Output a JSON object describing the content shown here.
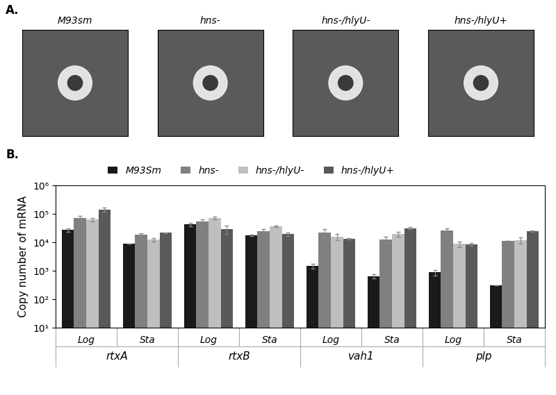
{
  "panel_a": {
    "label": "A.",
    "titles": [
      "M93sm",
      "hns-",
      "hns-/hlyU-",
      "hns-/hlyU+"
    ]
  },
  "chart_data": {
    "type": "bar",
    "panel_label": "B.",
    "y_label": "Copy number of mRNA",
    "categories": [
      "Log",
      "Sta",
      "Log",
      "Sta",
      "Log",
      "Sta",
      "Log",
      "Sta"
    ],
    "groups": [
      "rtxA",
      "rtxB",
      "vah1",
      "plp"
    ],
    "log": "y",
    "grid": false,
    "legend": "upper center",
    "ylim": [
      10,
      1000000
    ],
    "yticks": [
      {
        "value": 10,
        "label": "10¹"
      },
      {
        "value": 100,
        "label": "10²"
      },
      {
        "value": 1000,
        "label": "10³"
      },
      {
        "value": 10000,
        "label": "10⁴"
      },
      {
        "value": 100000,
        "label": "10⁵"
      },
      {
        "value": 1000000,
        "label": "10⁶"
      }
    ],
    "series": [
      {
        "name": "M93Sm",
        "color": "#1a1a1a",
        "values": [
          28000,
          9000,
          43000,
          18000,
          1500,
          650,
          900,
          320
        ],
        "errors": [
          4000,
          0,
          6000,
          1000,
          300,
          100,
          200,
          0
        ]
      },
      {
        "name": "hns-",
        "color": "#808080",
        "values": [
          75000,
          19000,
          55000,
          25000,
          23000,
          13000,
          27000,
          11500
        ],
        "errors": [
          10000,
          2000,
          12000,
          4000,
          7000,
          3000,
          4000,
          0
        ]
      },
      {
        "name": "hns-/hlyU-",
        "color": "#bfbfbf",
        "values": [
          65000,
          12500,
          75000,
          37000,
          16000,
          20000,
          9000,
          12000
        ],
        "errors": [
          10000,
          2000,
          8000,
          2000,
          4000,
          4000,
          2000,
          3000
        ]
      },
      {
        "name": "hns-/hlyU+",
        "color": "#595959",
        "values": [
          145000,
          22000,
          30000,
          20000,
          13500,
          32000,
          8500,
          25000
        ],
        "errors": [
          25000,
          1000,
          10000,
          3000,
          1000,
          3000,
          1000,
          1000
        ]
      }
    ]
  }
}
